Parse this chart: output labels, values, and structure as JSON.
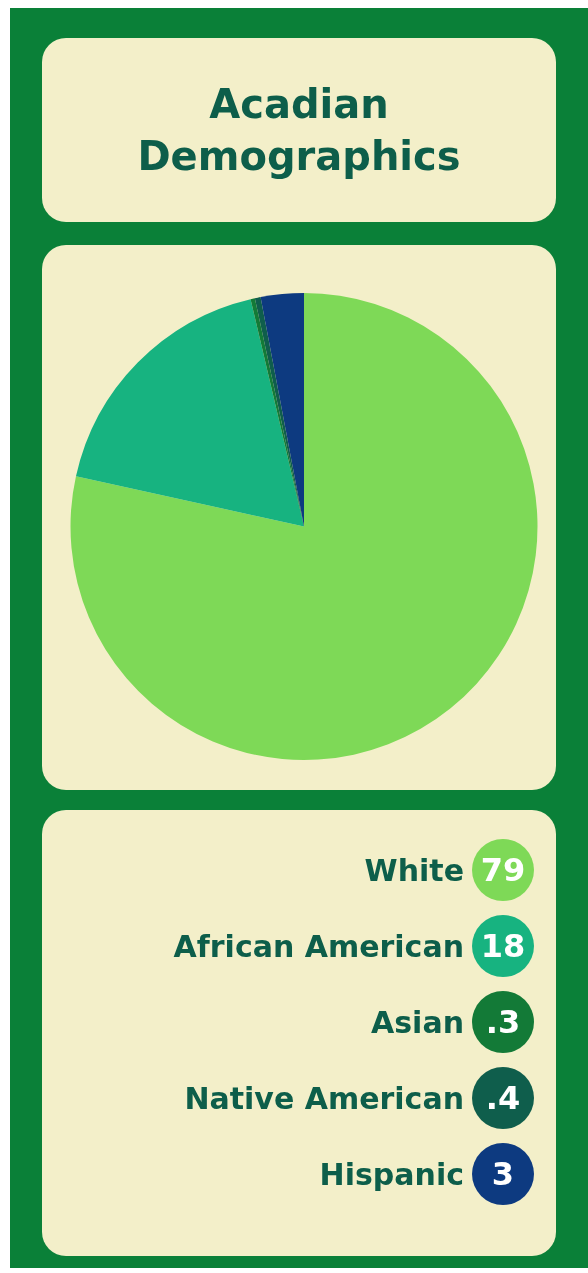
{
  "chart_data": {
    "type": "pie",
    "title": "Acadian Demographics",
    "categories": [
      "White",
      "African American",
      "Asian",
      "Native American",
      "Hispanic"
    ],
    "values": [
      79,
      18,
      0.3,
      0.4,
      3
    ],
    "colors": [
      "#7ed957",
      "#17b380",
      "#137a37",
      "#0f5e4c",
      "#0d3a80"
    ],
    "value_labels": [
      "79",
      "18",
      ".3",
      ".4",
      "3"
    ],
    "legend": "bottom"
  }
}
